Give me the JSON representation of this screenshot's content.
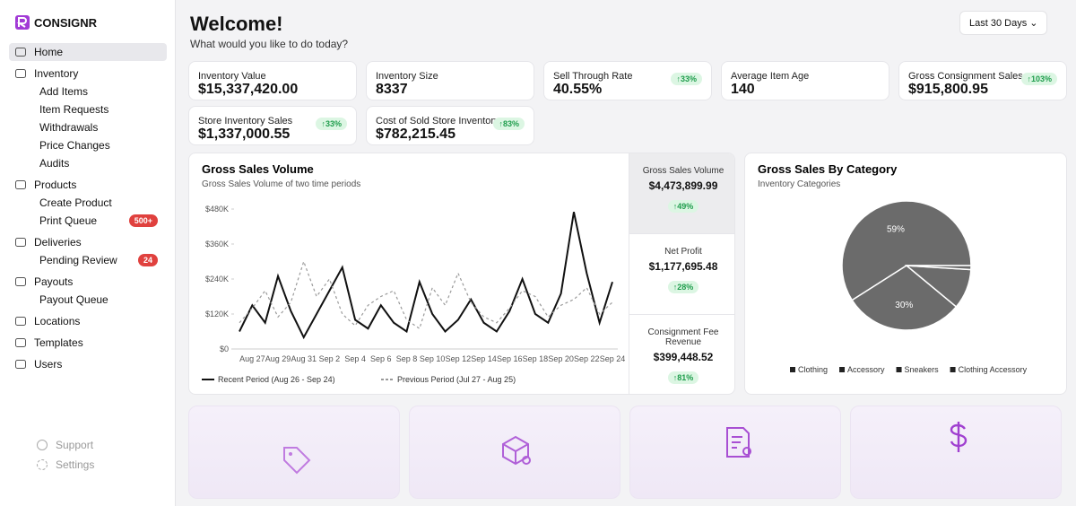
{
  "brand": "CONSIGNR",
  "nav": [
    {
      "label": "Home"
    },
    {
      "label": "Inventory"
    },
    {
      "label": "Add Items"
    },
    {
      "label": "Item Requests"
    },
    {
      "label": "Withdrawals"
    },
    {
      "label": "Price Changes"
    },
    {
      "label": "Audits"
    },
    {
      "label": "Products"
    },
    {
      "label": "Create Product"
    },
    {
      "label": "Print Queue",
      "badge": "500+"
    },
    {
      "label": "Deliveries"
    },
    {
      "label": "Pending Review",
      "badge": "24"
    },
    {
      "label": "Payouts"
    },
    {
      "label": "Payout Queue"
    },
    {
      "label": "Locations"
    },
    {
      "label": "Templates"
    },
    {
      "label": "Users"
    }
  ],
  "footer_nav": [
    "Support",
    "Settings"
  ],
  "header": {
    "title": "Welcome!",
    "subtitle": "What would you like to do today?",
    "date_range": "Last 30 Days"
  },
  "kpis": [
    {
      "label": "Inventory Value",
      "value": "$15,337,420.00"
    },
    {
      "label": "Inventory Size",
      "value": "8337"
    },
    {
      "label": "Sell Through Rate",
      "value": "40.55%",
      "change": "33%"
    },
    {
      "label": "Average Item Age",
      "value": "140"
    },
    {
      "label": "Gross Consignment Sales",
      "value": "$915,800.95",
      "change": "103%"
    },
    {
      "label": "Store Inventory Sales",
      "value": "$1,337,000.55",
      "change": "33%"
    },
    {
      "label": "Cost of Sold Store Inventory",
      "value": "$782,215.45",
      "change": "83%"
    }
  ],
  "side_stats": [
    {
      "label": "Gross Sales Volume",
      "value": "$4,473,899.99",
      "change": "49%"
    },
    {
      "label": "Net Profit",
      "value": "$1,177,695.48",
      "change": "28%"
    },
    {
      "label": "Consignment Fee Revenue",
      "value": "$399,448.52",
      "change": "81%"
    }
  ],
  "chart_data": [
    {
      "type": "line",
      "title": "Gross Sales Volume",
      "subtitle": "Gross Sales Volume of two time periods",
      "categories": [
        null,
        "Aug 27",
        null,
        "Aug 29",
        null,
        "Aug 31",
        null,
        "Sep 2",
        null,
        "Sep 4",
        null,
        "Sep 6",
        null,
        "Sep 8",
        null,
        "Sep 10",
        null,
        "Sep 12",
        null,
        "Sep 14",
        null,
        "Sep 16",
        null,
        "Sep 18",
        null,
        "Sep 20",
        null,
        "Sep 22",
        null,
        "Sep 24"
      ],
      "series": [
        {
          "name": "Recent Period (Aug 26 - Sep 24)",
          "color": "#111111",
          "line_style": "solid",
          "values": [
            60000,
            150000,
            90000,
            250000,
            130000,
            40000,
            120000,
            200000,
            280000,
            100000,
            70000,
            150000,
            90000,
            60000,
            230000,
            120000,
            60000,
            100000,
            170000,
            90000,
            60000,
            130000,
            240000,
            120000,
            90000,
            190000,
            470000,
            260000,
            90000,
            230000
          ]
        },
        {
          "name": "Previous Period (Jul 27 - Aug 25)",
          "color": "#9a9a9a",
          "line_style": "dashed",
          "values": [
            90000,
            140000,
            200000,
            110000,
            160000,
            300000,
            180000,
            240000,
            120000,
            80000,
            150000,
            180000,
            200000,
            100000,
            70000,
            210000,
            150000,
            260000,
            160000,
            110000,
            90000,
            140000,
            200000,
            180000,
            110000,
            150000,
            170000,
            210000,
            120000,
            160000
          ]
        }
      ],
      "ylim": [
        0,
        480000
      ],
      "yticks": [
        {
          "value": 0,
          "label": "$0"
        },
        {
          "value": 120000,
          "label": "$120K"
        },
        {
          "value": 240000,
          "label": "$240K"
        },
        {
          "value": 360000,
          "label": "$360K"
        },
        {
          "value": 480000,
          "label": "$480K"
        }
      ],
      "grid": false
    },
    {
      "type": "pie",
      "title": "Gross Sales By Category",
      "subtitle": "Inventory Categories",
      "categories": [
        "Clothing",
        "Accessory",
        "Sneakers",
        "Clothing Accessory"
      ],
      "values": [
        59,
        30,
        10,
        1
      ],
      "value_labels": [
        "59%",
        "30%",
        null,
        null
      ],
      "color": "#6b6b6b"
    }
  ]
}
